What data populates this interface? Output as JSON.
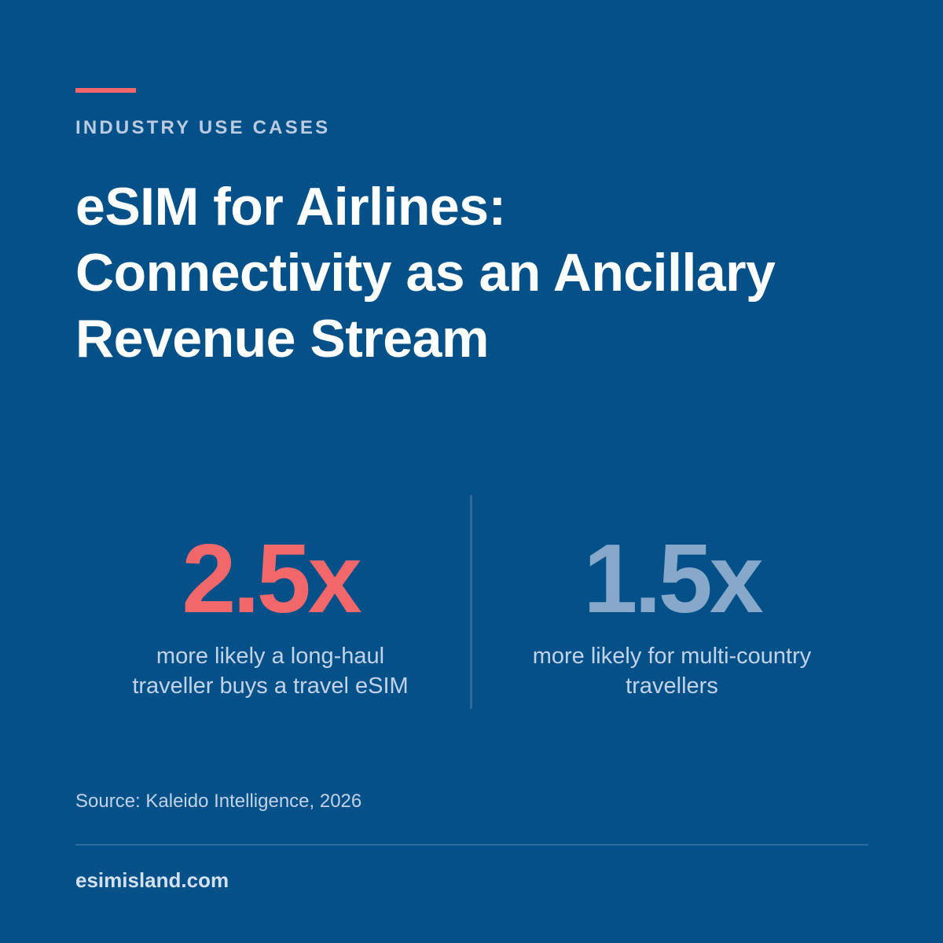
{
  "header": {
    "eyebrow": "INDUSTRY USE CASES",
    "title_lines": [
      "eSIM for Airlines:",
      "Connectivity as an Ancillary",
      "Revenue Stream"
    ]
  },
  "stats": [
    {
      "value": "2.5x",
      "description_lines": [
        "more likely a long-haul",
        "traveller buys a travel eSIM"
      ]
    },
    {
      "value": "1.5x",
      "description_lines": [
        "more likely for multi-country",
        "travellers"
      ]
    }
  ],
  "source": "Source: Kaleido Intelligence, 2026",
  "footer": {
    "site": "esimisland.com"
  },
  "colors": {
    "background": "#04518a",
    "accent": "#f2676a",
    "secondary_stat": "#87a8c8"
  }
}
